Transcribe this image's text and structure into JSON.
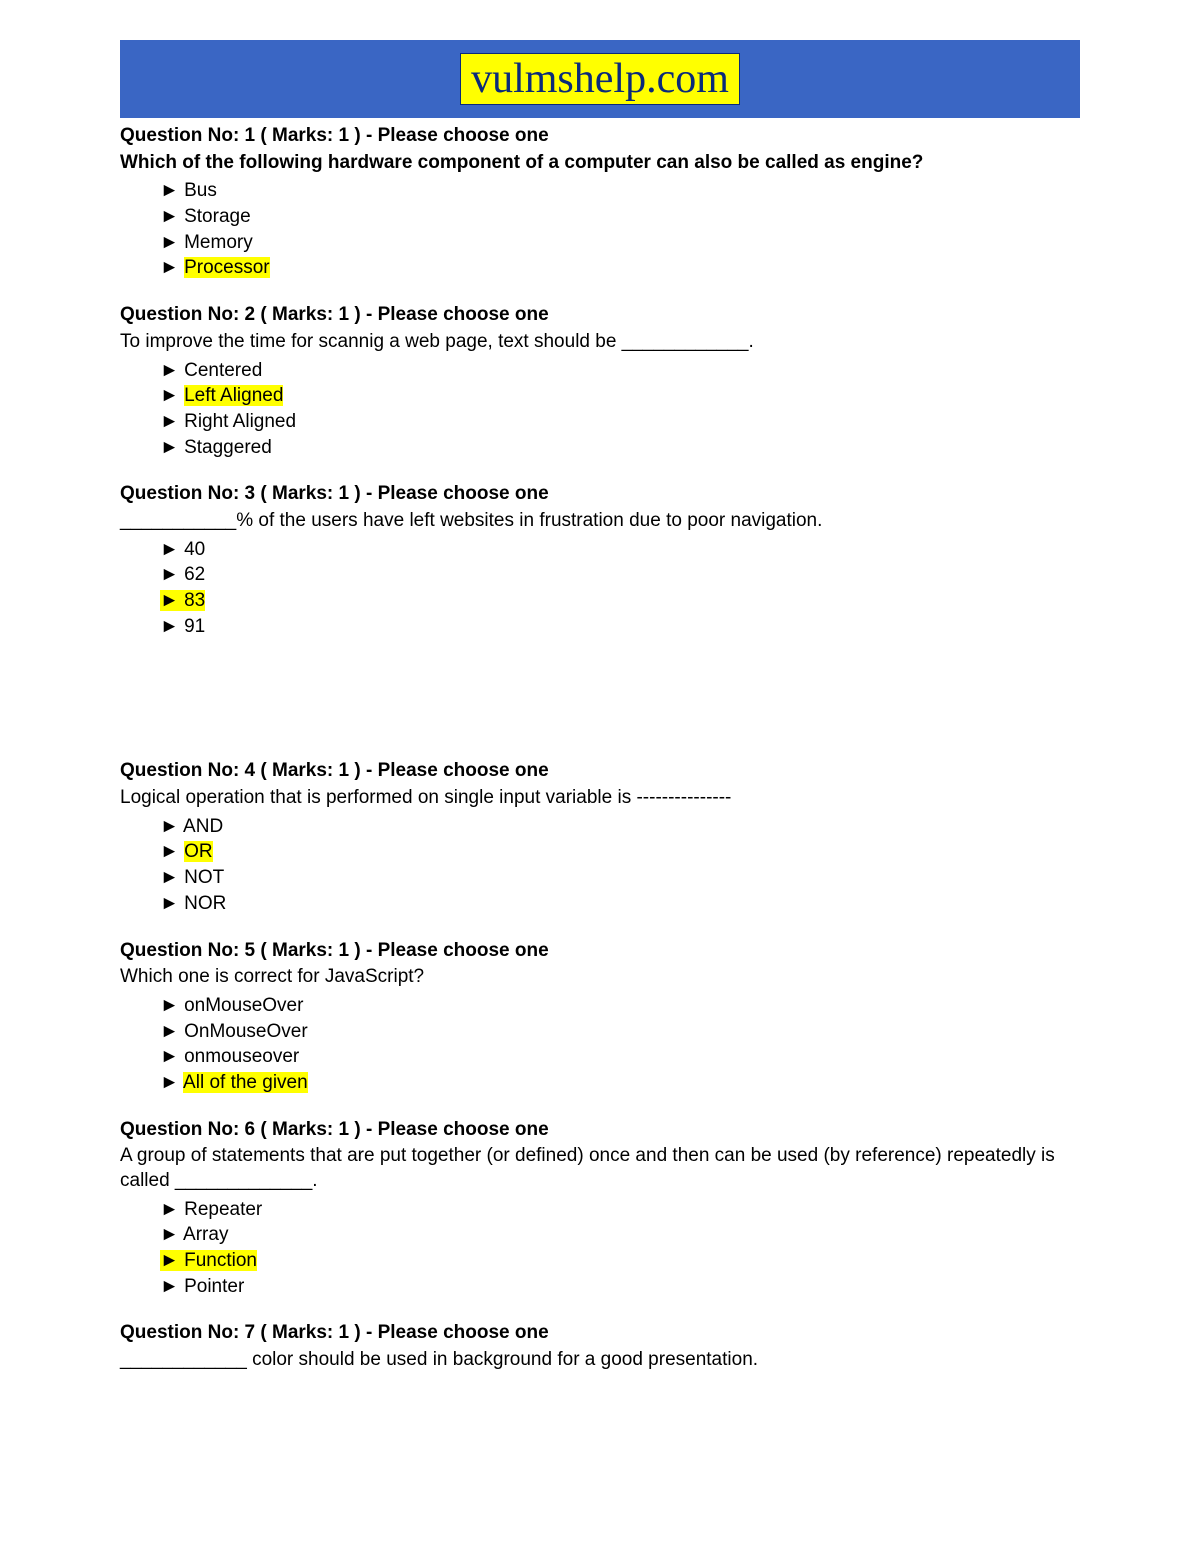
{
  "banner": {
    "text": "vulmshelp.com",
    "bg_color": "#3a66c4",
    "highlight_bg": "#ffff00",
    "text_color": "#0a2a7a"
  },
  "marker": "►",
  "highlight_color": "#ffff00",
  "questions": [
    {
      "header": "Question No: 1    ( Marks: 1 )    - Please choose one",
      "body": " Which of the following hardware component of a computer can also be called as engine?",
      "body_bold": true,
      "extra_gap": false,
      "options": [
        {
          "text": "Bus",
          "highlighted": false,
          "highlight_marker": false
        },
        {
          "text": "Storage",
          "highlighted": false,
          "highlight_marker": false
        },
        {
          "text": "Memory",
          "highlighted": false,
          "highlight_marker": false
        },
        {
          "text": "Processor",
          "highlighted": true,
          "highlight_marker": false
        }
      ]
    },
    {
      "header": "Question No: 2    ( Marks: 1 )    - Please choose one",
      "body": " To improve the time for scannig a web page, text should be ____________.",
      "body_bold": false,
      "extra_gap": false,
      "options": [
        {
          "text": "Centered",
          "highlighted": false,
          "highlight_marker": false
        },
        {
          "text": "Left Aligned",
          "highlighted": true,
          "highlight_marker": false
        },
        {
          "text": "Right Aligned",
          "highlighted": false,
          "highlight_marker": false
        },
        {
          "text": "Staggered",
          "highlighted": false,
          "highlight_marker": false
        }
      ]
    },
    {
      "header": "Question No: 3    ( Marks: 1 )    - Please choose one",
      "body": " ___________% of the users have left websites in frustration due to poor navigation.",
      "body_bold": false,
      "extra_gap": true,
      "options": [
        {
          "text": "40",
          "highlighted": false,
          "highlight_marker": false
        },
        {
          "text": "62",
          "highlighted": false,
          "highlight_marker": false
        },
        {
          "text": "83",
          "highlighted": true,
          "highlight_marker": true
        },
        {
          "text": "91",
          "highlighted": false,
          "highlight_marker": false
        }
      ]
    },
    {
      "header": "Question No: 4    ( Marks: 1 )    - Please choose one",
      "body": " Logical operation that is performed on single input variable is ---------------",
      "body_bold": false,
      "extra_gap": false,
      "options": [
        {
          "text": "AND",
          "highlighted": false,
          "highlight_marker": false
        },
        {
          "text": "OR",
          "highlighted": true,
          "highlight_marker": false
        },
        {
          "text": "NOT",
          "highlighted": false,
          "highlight_marker": false
        },
        {
          "text": "NOR",
          "highlighted": false,
          "highlight_marker": false
        }
      ]
    },
    {
      "header": "Question No: 5    ( Marks: 1 )    - Please choose one",
      "body": " Which one is correct for JavaScript?",
      "body_bold": false,
      "extra_gap": false,
      "options": [
        {
          "text": "onMouseOver",
          "highlighted": false,
          "highlight_marker": false
        },
        {
          "text": "OnMouseOver",
          "highlighted": false,
          "highlight_marker": false
        },
        {
          "text": "onmouseover",
          "highlighted": false,
          "highlight_marker": false
        },
        {
          "text": "All of the given",
          "highlighted": true,
          "highlight_marker": false
        }
      ]
    },
    {
      "header": "Question No: 6    ( Marks: 1 )    - Please choose one",
      "body": " A group of statements that are put together (or defined) once and then can be used (by reference) repeatedly is called _____________.",
      "body_bold": false,
      "extra_gap": false,
      "options": [
        {
          "text": "Repeater",
          "highlighted": false,
          "highlight_marker": false
        },
        {
          "text": "Array",
          "highlighted": false,
          "highlight_marker": false
        },
        {
          "text": "Function",
          "highlighted": true,
          "highlight_marker": true
        },
        {
          "text": "Pointer",
          "highlighted": false,
          "highlight_marker": false
        }
      ]
    },
    {
      "header": "Question No: 7    ( Marks: 1 )    - Please choose one",
      "body": " ____________ color should be used in background for a good presentation.",
      "body_bold": false,
      "extra_gap": false,
      "options": []
    }
  ]
}
